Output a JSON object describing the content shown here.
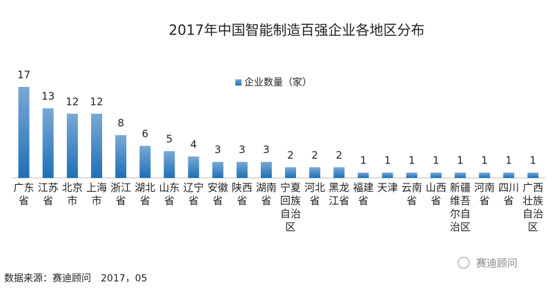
{
  "chart_data": {
    "type": "bar",
    "title": "2017年中国智能制造百强企业各地区分布",
    "legend": "企业数量（家）",
    "source": "数据来源：赛迪顾问　2017，05",
    "watermark": "赛迪顾问",
    "categories": [
      "广东省",
      "江苏省",
      "北京市",
      "上海市",
      "浙江省",
      "湖北省",
      "山东省",
      "辽宁省",
      "安徽省",
      "陕西省",
      "湖南省",
      "宁夏回族自治区",
      "河北省",
      "黑龙江省",
      "福建省",
      "天津",
      "云南省",
      "山西省",
      "新疆维吾尔自治区",
      "河南省",
      "四川省",
      "广西壮族自治区"
    ],
    "values": [
      17,
      13,
      12,
      12,
      8,
      6,
      5,
      4,
      3,
      3,
      3,
      2,
      2,
      2,
      1,
      1,
      1,
      1,
      1,
      1,
      1,
      1
    ],
    "color": "#1f6fb8",
    "ylim": [
      0,
      17
    ]
  }
}
